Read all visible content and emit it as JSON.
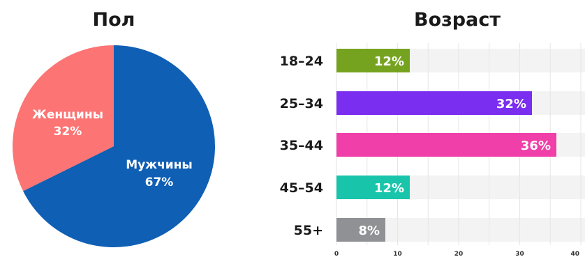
{
  "chart_data": [
    {
      "type": "pie",
      "title": "Пол",
      "slices": [
        {
          "label": "Женщины",
          "value_label": "32%",
          "value": 32,
          "color": "#fc7474"
        },
        {
          "label": "Мужчины",
          "value_label": "67%",
          "value": 67,
          "color": "#0f5fb4"
        }
      ]
    },
    {
      "type": "bar",
      "orientation": "horizontal",
      "title": "Возраст",
      "categories": [
        "18–24",
        "25–34",
        "35–44",
        "45–54",
        "55+"
      ],
      "values": [
        12,
        32,
        36,
        12,
        8
      ],
      "value_labels": [
        "12%",
        "32%",
        "36%",
        "12%",
        "8%"
      ],
      "colors": [
        "#76a31f",
        "#7a2ef0",
        "#f03fa8",
        "#18c5ab",
        "#8f9194"
      ],
      "xlim": [
        0,
        40
      ],
      "xticks": [
        "0",
        "10",
        "20",
        "30",
        "40"
      ],
      "grid": true
    }
  ]
}
